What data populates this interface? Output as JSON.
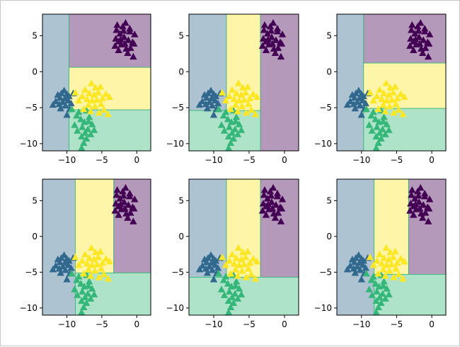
{
  "figure": {
    "background": "#ffffff"
  },
  "colors": {
    "region_alpha": 0.4,
    "point_alpha": 1.0,
    "class": [
      "#440154",
      "#31688e",
      "#35b779",
      "#fde725"
    ],
    "boundary": "#35b779"
  },
  "chart_data": [
    {
      "type": "scatter",
      "title": "",
      "xlabel": "",
      "ylabel": "",
      "xlim": [
        -13.5,
        2
      ],
      "ylim": [
        -11,
        8
      ],
      "xticks": [
        -10,
        -5,
        0
      ],
      "yticks": [
        5,
        0,
        -5,
        -10
      ],
      "regions": [
        {
          "class": 1,
          "x": [
            -13.5,
            -9.7
          ],
          "y": [
            -11,
            8
          ]
        },
        {
          "class": 0,
          "x": [
            -9.7,
            2
          ],
          "y": [
            0.6,
            8
          ]
        },
        {
          "class": 3,
          "x": [
            -9.7,
            2
          ],
          "y": [
            -5.3,
            0.6
          ]
        },
        {
          "class": 2,
          "x": [
            -9.7,
            2
          ],
          "y": [
            -11,
            -5.3
          ]
        }
      ]
    },
    {
      "type": "scatter",
      "title": "",
      "xlabel": "",
      "ylabel": "",
      "xlim": [
        -13.5,
        2
      ],
      "ylim": [
        -11,
        8
      ],
      "xticks": [
        -10,
        -5,
        0
      ],
      "yticks": [
        5,
        0,
        -5,
        -10
      ],
      "regions": [
        {
          "class": 1,
          "x": [
            -13.5,
            -8.2
          ],
          "y": [
            -5.4,
            8
          ]
        },
        {
          "class": 2,
          "x": [
            -13.5,
            -3.4
          ],
          "y": [
            -11,
            -5.4
          ]
        },
        {
          "class": 3,
          "x": [
            -8.2,
            -3.4
          ],
          "y": [
            -5.4,
            8
          ]
        },
        {
          "class": 0,
          "x": [
            -3.4,
            2
          ],
          "y": [
            -11,
            8
          ]
        }
      ]
    },
    {
      "type": "scatter",
      "title": "",
      "xlabel": "",
      "ylabel": "",
      "xlim": [
        -13.5,
        2
      ],
      "ylim": [
        -11,
        8
      ],
      "xticks": [
        -10,
        -5,
        0
      ],
      "yticks": [
        5,
        0,
        -5,
        -10
      ],
      "regions": [
        {
          "class": 1,
          "x": [
            -13.5,
            -9.7
          ],
          "y": [
            -11,
            8
          ]
        },
        {
          "class": 0,
          "x": [
            -9.7,
            2
          ],
          "y": [
            1.2,
            8
          ]
        },
        {
          "class": 3,
          "x": [
            -9.7,
            2
          ],
          "y": [
            -5.1,
            1.2
          ]
        },
        {
          "class": 2,
          "x": [
            -9.7,
            2
          ],
          "y": [
            -11,
            -5.1
          ]
        }
      ]
    },
    {
      "type": "scatter",
      "title": "",
      "xlabel": "",
      "ylabel": "",
      "xlim": [
        -13.5,
        2
      ],
      "ylim": [
        -11,
        8
      ],
      "xticks": [
        -10,
        -5,
        0
      ],
      "yticks": [
        5,
        0,
        -5,
        -10
      ],
      "regions": [
        {
          "class": 1,
          "x": [
            -13.5,
            -8.8
          ],
          "y": [
            -11,
            8
          ]
        },
        {
          "class": 3,
          "x": [
            -8.8,
            -3.3
          ],
          "y": [
            -5.1,
            8
          ]
        },
        {
          "class": 0,
          "x": [
            -3.3,
            2
          ],
          "y": [
            -5.1,
            8
          ]
        },
        {
          "class": 2,
          "x": [
            -8.8,
            2
          ],
          "y": [
            -11,
            -5.1
          ]
        }
      ]
    },
    {
      "type": "scatter",
      "title": "",
      "xlabel": "",
      "ylabel": "",
      "xlim": [
        -13.5,
        2
      ],
      "ylim": [
        -11,
        8
      ],
      "xticks": [
        -10,
        -5,
        0
      ],
      "yticks": [
        5,
        0,
        -5,
        -10
      ],
      "regions": [
        {
          "class": 1,
          "x": [
            -13.5,
            -8.2
          ],
          "y": [
            -5.7,
            8
          ]
        },
        {
          "class": 3,
          "x": [
            -8.2,
            -3.4
          ],
          "y": [
            -5.7,
            8
          ]
        },
        {
          "class": 0,
          "x": [
            -3.4,
            2
          ],
          "y": [
            -5.7,
            8
          ]
        },
        {
          "class": 2,
          "x": [
            -13.5,
            2
          ],
          "y": [
            -11,
            -5.7
          ]
        }
      ]
    },
    {
      "type": "scatter",
      "title": "",
      "xlabel": "",
      "ylabel": "",
      "xlim": [
        -13.5,
        2
      ],
      "ylim": [
        -11,
        8
      ],
      "xticks": [
        -10,
        -5,
        0
      ],
      "yticks": [
        5,
        0,
        -5,
        -10
      ],
      "regions": [
        {
          "class": 1,
          "x": [
            -13.5,
            -8.2
          ],
          "y": [
            -11,
            8
          ]
        },
        {
          "class": 3,
          "x": [
            -8.2,
            -3.3
          ],
          "y": [
            -5.3,
            8
          ]
        },
        {
          "class": 0,
          "x": [
            -3.3,
            2
          ],
          "y": [
            -5.3,
            8
          ]
        },
        {
          "class": 2,
          "x": [
            -8.2,
            2
          ],
          "y": [
            -11,
            -5.3
          ]
        }
      ]
    }
  ],
  "points": [
    {
      "class": 0,
      "x": -2.8,
      "y": 6.5
    },
    {
      "class": 0,
      "x": -2.0,
      "y": 6.3
    },
    {
      "class": 0,
      "x": -1.6,
      "y": 6.8
    },
    {
      "class": 0,
      "x": -1.0,
      "y": 5.6
    },
    {
      "class": 0,
      "x": -0.3,
      "y": 5.2
    },
    {
      "class": 0,
      "x": -2.4,
      "y": 5.3
    },
    {
      "class": 0,
      "x": -3.0,
      "y": 4.6
    },
    {
      "class": 0,
      "x": -2.6,
      "y": 4.2
    },
    {
      "class": 0,
      "x": -1.8,
      "y": 4.8
    },
    {
      "class": 0,
      "x": -1.2,
      "y": 4.4
    },
    {
      "class": 0,
      "x": -0.6,
      "y": 4.1
    },
    {
      "class": 0,
      "x": -2.2,
      "y": 3.8
    },
    {
      "class": 0,
      "x": -3.1,
      "y": 3.6
    },
    {
      "class": 0,
      "x": -1.5,
      "y": 3.2
    },
    {
      "class": 0,
      "x": -0.9,
      "y": 3.3
    },
    {
      "class": 0,
      "x": -2.9,
      "y": 5.8
    },
    {
      "class": 0,
      "x": -1.3,
      "y": 2.6
    },
    {
      "class": 0,
      "x": -0.5,
      "y": 2.1
    },
    {
      "class": 0,
      "x": -2.3,
      "y": 4.5
    },
    {
      "class": 0,
      "x": -1.9,
      "y": 5.7
    },
    {
      "class": 0,
      "x": -0.4,
      "y": 3.9
    },
    {
      "class": 0,
      "x": -2.6,
      "y": 3.0
    },
    {
      "class": 0,
      "x": -1.0,
      "y": 6.0
    },
    {
      "class": 0,
      "x": -1.7,
      "y": 3.9
    },
    {
      "class": 1,
      "x": -10.4,
      "y": -2.6
    },
    {
      "class": 1,
      "x": -10.8,
      "y": -3.0
    },
    {
      "class": 1,
      "x": -10.0,
      "y": -3.1
    },
    {
      "class": 1,
      "x": -11.0,
      "y": -3.6
    },
    {
      "class": 1,
      "x": -10.3,
      "y": -3.7
    },
    {
      "class": 1,
      "x": -9.7,
      "y": -3.4
    },
    {
      "class": 1,
      "x": -11.6,
      "y": -4.1
    },
    {
      "class": 1,
      "x": -10.6,
      "y": -4.2
    },
    {
      "class": 1,
      "x": -9.8,
      "y": -4.0
    },
    {
      "class": 1,
      "x": -11.1,
      "y": -4.5
    },
    {
      "class": 1,
      "x": -12.0,
      "y": -4.6
    },
    {
      "class": 1,
      "x": -10.2,
      "y": -4.7
    },
    {
      "class": 1,
      "x": -9.4,
      "y": -4.4
    },
    {
      "class": 1,
      "x": -10.9,
      "y": -5.1
    },
    {
      "class": 1,
      "x": -9.6,
      "y": -5.2
    },
    {
      "class": 1,
      "x": -10.0,
      "y": -6.0
    },
    {
      "class": 1,
      "x": -11.3,
      "y": -3.2
    },
    {
      "class": 1,
      "x": -9.1,
      "y": -3.0
    },
    {
      "class": 2,
      "x": -9.3,
      "y": -5.2
    },
    {
      "class": 2,
      "x": -8.3,
      "y": -5.6
    },
    {
      "class": 2,
      "x": -7.2,
      "y": -5.4
    },
    {
      "class": 2,
      "x": -6.8,
      "y": -6.3
    },
    {
      "class": 2,
      "x": -8.0,
      "y": -6.6
    },
    {
      "class": 2,
      "x": -7.5,
      "y": -7.0
    },
    {
      "class": 2,
      "x": -6.4,
      "y": -7.3
    },
    {
      "class": 2,
      "x": -8.9,
      "y": -7.4
    },
    {
      "class": 2,
      "x": -7.8,
      "y": -7.7
    },
    {
      "class": 2,
      "x": -7.0,
      "y": -8.0
    },
    {
      "class": 2,
      "x": -6.1,
      "y": -8.1
    },
    {
      "class": 2,
      "x": -8.5,
      "y": -8.2
    },
    {
      "class": 2,
      "x": -7.4,
      "y": -8.5
    },
    {
      "class": 2,
      "x": -6.6,
      "y": -8.7
    },
    {
      "class": 2,
      "x": -7.9,
      "y": -9.0
    },
    {
      "class": 2,
      "x": -7.2,
      "y": -9.3
    },
    {
      "class": 2,
      "x": -7.6,
      "y": -9.9
    },
    {
      "class": 2,
      "x": -7.9,
      "y": -10.6
    },
    {
      "class": 2,
      "x": -6.9,
      "y": -6.9
    },
    {
      "class": 2,
      "x": -8.6,
      "y": -6.1
    },
    {
      "class": 3,
      "x": -6.5,
      "y": -1.6
    },
    {
      "class": 3,
      "x": -5.9,
      "y": -2.2
    },
    {
      "class": 3,
      "x": -7.4,
      "y": -2.5
    },
    {
      "class": 3,
      "x": -5.2,
      "y": -2.1
    },
    {
      "class": 3,
      "x": -6.8,
      "y": -3.0
    },
    {
      "class": 3,
      "x": -6.1,
      "y": -3.2
    },
    {
      "class": 3,
      "x": -5.5,
      "y": -2.9
    },
    {
      "class": 3,
      "x": -4.4,
      "y": -3.1
    },
    {
      "class": 3,
      "x": -7.8,
      "y": -3.4
    },
    {
      "class": 3,
      "x": -7.1,
      "y": -3.8
    },
    {
      "class": 3,
      "x": -6.4,
      "y": -4.0
    },
    {
      "class": 3,
      "x": -5.7,
      "y": -3.9
    },
    {
      "class": 3,
      "x": -4.9,
      "y": -3.7
    },
    {
      "class": 3,
      "x": -3.9,
      "y": -3.5
    },
    {
      "class": 3,
      "x": -8.3,
      "y": -4.0
    },
    {
      "class": 3,
      "x": -6.9,
      "y": -4.6
    },
    {
      "class": 3,
      "x": -6.0,
      "y": -4.8
    },
    {
      "class": 3,
      "x": -5.1,
      "y": -4.5
    },
    {
      "class": 3,
      "x": -7.6,
      "y": -5.2
    },
    {
      "class": 3,
      "x": -6.6,
      "y": -5.5
    },
    {
      "class": 3,
      "x": -5.4,
      "y": -5.7
    },
    {
      "class": 3,
      "x": -4.7,
      "y": -5.3
    },
    {
      "class": 3,
      "x": -4.1,
      "y": -5.9
    },
    {
      "class": 3,
      "x": -8.8,
      "y": -2.9
    }
  ]
}
